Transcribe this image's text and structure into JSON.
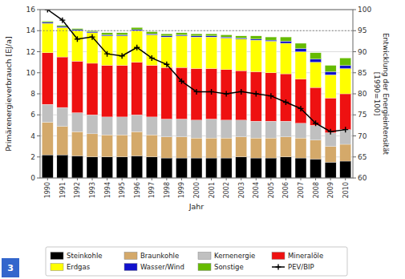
{
  "chart_data": {
    "type": "bar",
    "stacked": true,
    "grid": true,
    "legend": "bottom",
    "xlabel": "Jahr",
    "ylabel": "Primärenergieverbrauch [EJ/a]",
    "y2label": "Entwicklung der Energieintensität\n[1990=100]",
    "categories": [
      "1990",
      "1991",
      "1992",
      "1993",
      "1994",
      "1995",
      "1996",
      "1997",
      "1998",
      "1999",
      "2000",
      "2001",
      "2002",
      "2003",
      "2004",
      "2005",
      "2006",
      "2007",
      "2008",
      "2009",
      "2010"
    ],
    "ylim": [
      0,
      16
    ],
    "yticks": [
      0,
      2,
      4,
      6,
      8,
      10,
      12,
      14,
      16
    ],
    "y2lim": [
      60,
      100
    ],
    "y2ticks": [
      60,
      65,
      70,
      75,
      80,
      85,
      90,
      95,
      100
    ],
    "series": [
      {
        "name": "Steinkohle",
        "color": "#000000",
        "values": [
          2.2,
          2.2,
          2.1,
          2.0,
          2.0,
          2.0,
          2.1,
          2.0,
          1.9,
          1.9,
          1.9,
          1.9,
          1.9,
          2.0,
          1.9,
          1.9,
          2.0,
          1.9,
          1.8,
          1.5,
          1.6
        ]
      },
      {
        "name": "Braunkohle",
        "color": "#d4a96a",
        "values": [
          3.1,
          2.7,
          2.3,
          2.2,
          2.1,
          2.1,
          2.3,
          2.1,
          2.0,
          2.0,
          1.9,
          1.9,
          1.9,
          1.9,
          1.9,
          1.9,
          1.9,
          1.9,
          1.8,
          1.5,
          1.6
        ]
      },
      {
        "name": "Kernenergie",
        "color": "#c0c0c0",
        "values": [
          1.7,
          1.8,
          1.8,
          1.8,
          1.7,
          1.7,
          1.6,
          1.7,
          1.7,
          1.7,
          1.7,
          1.8,
          1.7,
          1.6,
          1.6,
          1.6,
          1.5,
          1.4,
          1.4,
          1.3,
          1.4
        ]
      },
      {
        "name": "Mineralöle",
        "color": "#ee1111",
        "values": [
          4.9,
          4.8,
          4.9,
          4.9,
          4.9,
          4.9,
          5.0,
          4.9,
          4.9,
          4.9,
          4.9,
          4.8,
          4.8,
          4.7,
          4.7,
          4.6,
          4.5,
          4.2,
          3.6,
          3.3,
          3.4
        ]
      },
      {
        "name": "Erdgas",
        "color": "#ffff00",
        "values": [
          2.8,
          2.8,
          2.9,
          2.9,
          2.8,
          2.8,
          3.0,
          2.9,
          2.9,
          3.0,
          3.0,
          3.0,
          3.0,
          3.0,
          3.0,
          3.0,
          2.9,
          2.6,
          2.4,
          2.2,
          2.4
        ]
      },
      {
        "name": "Wasser/Wind",
        "color": "#1111cc",
        "values": [
          0.1,
          0.1,
          0.1,
          0.1,
          0.1,
          0.1,
          0.1,
          0.1,
          0.1,
          0.1,
          0.1,
          0.1,
          0.1,
          0.1,
          0.1,
          0.1,
          0.2,
          0.3,
          0.3,
          0.3,
          0.3
        ]
      },
      {
        "name": "Sonstige",
        "color": "#66bb00",
        "values": [
          0.1,
          0.1,
          0.1,
          0.1,
          0.2,
          0.2,
          0.2,
          0.2,
          0.2,
          0.2,
          0.2,
          0.2,
          0.2,
          0.2,
          0.3,
          0.3,
          0.4,
          0.5,
          0.6,
          0.6,
          0.7
        ]
      },
      {
        "name": "PEV/BIP",
        "type": "line",
        "axis": "y2",
        "color": "#000000",
        "marker": "plus",
        "values": [
          100,
          97.5,
          93.0,
          93.5,
          89.5,
          89.0,
          91.0,
          88.5,
          87.0,
          83.0,
          80.5,
          80.5,
          80.0,
          80.5,
          80.0,
          79.5,
          78.0,
          76.5,
          73.0,
          71.0,
          71.5
        ]
      }
    ],
    "reference_lines": [
      {
        "value": 95,
        "axis": "y2",
        "line_style": "dotted"
      }
    ],
    "annotations": [
      "3"
    ]
  }
}
